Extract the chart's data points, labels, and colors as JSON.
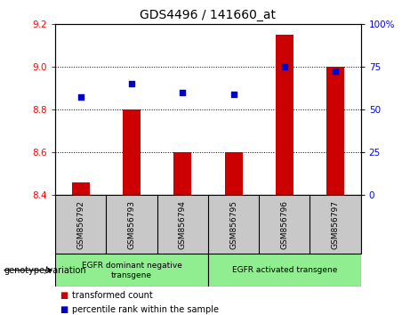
{
  "title": "GDS4496 / 141660_at",
  "samples": [
    "GSM856792",
    "GSM856793",
    "GSM856794",
    "GSM856795",
    "GSM856796",
    "GSM856797"
  ],
  "bar_values": [
    8.46,
    8.8,
    8.6,
    8.6,
    9.15,
    9.0
  ],
  "scatter_values": [
    8.86,
    8.92,
    8.88,
    8.87,
    9.0,
    8.98
  ],
  "bar_color": "#cc0000",
  "scatter_color": "#0000cc",
  "ylim_left": [
    8.4,
    9.2
  ],
  "ylim_right": [
    0,
    100
  ],
  "yticks_left": [
    8.4,
    8.6,
    8.8,
    9.0,
    9.2
  ],
  "yticks_right": [
    0,
    25,
    50,
    75,
    100
  ],
  "group1_label": "EGFR dominant negative\ntransgene",
  "group2_label": "EGFR activated transgene",
  "group_color": "#90ee90",
  "sample_box_color": "#c8c8c8",
  "xlabel_text": "genotype/variation",
  "legend_label_red": "transformed count",
  "legend_label_blue": "percentile rank within the sample",
  "bar_width": 0.35,
  "background_color": "#ffffff",
  "title_fontsize": 10,
  "tick_fontsize": 7.5,
  "grid_lines": [
    8.6,
    8.8,
    9.0
  ]
}
